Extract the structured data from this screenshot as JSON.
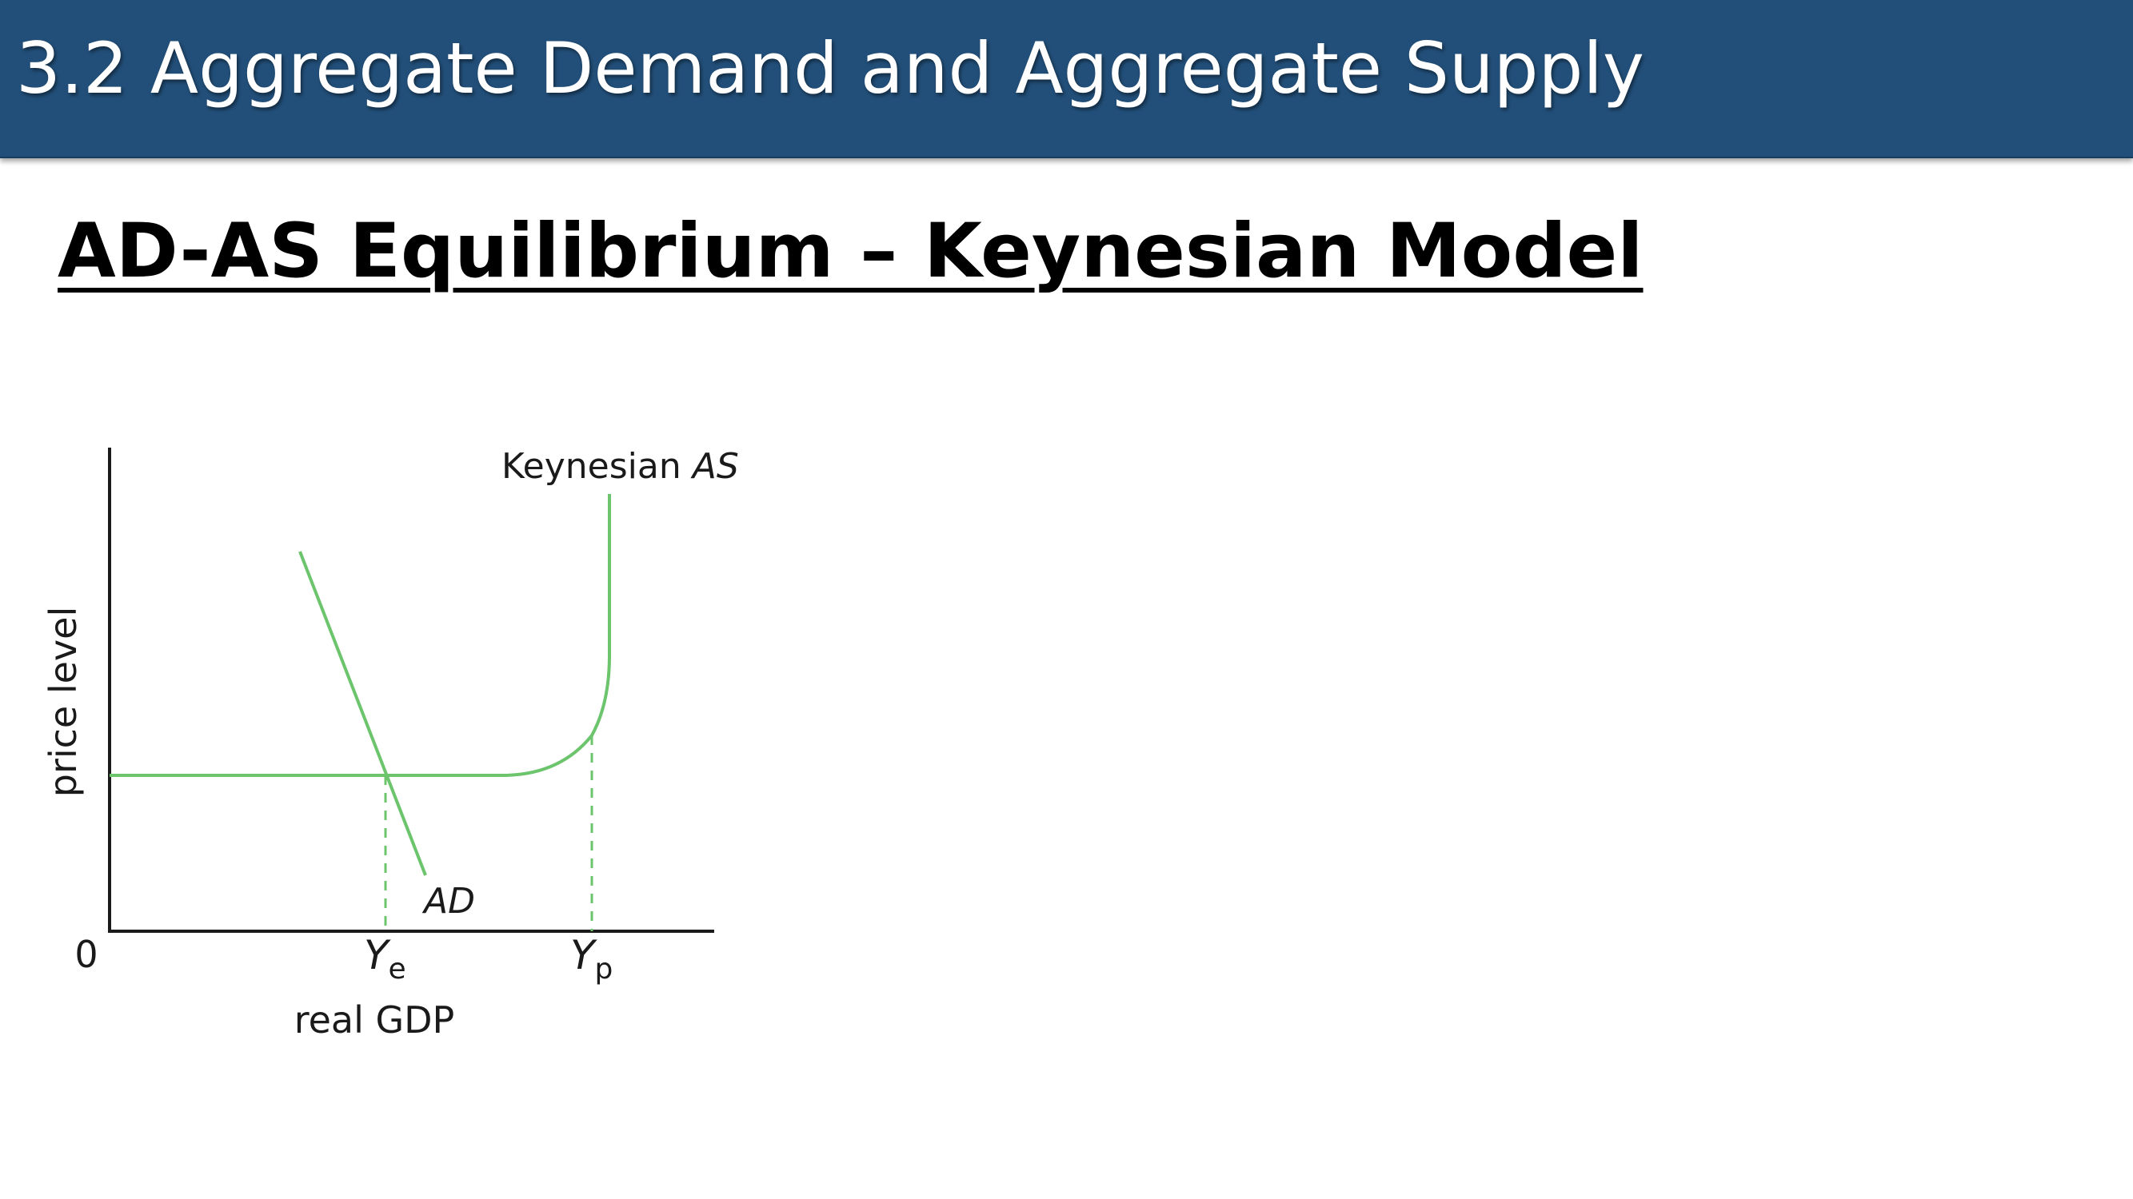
{
  "header": {
    "title": "3.2 Aggregate Demand and Aggregate Supply"
  },
  "slide": {
    "title": "AD-AS Equilibrium – Keynesian Model"
  },
  "diagram": {
    "y_axis_label": "price level",
    "x_axis_label": "real GDP",
    "origin_label": "0",
    "as_curve_label_prefix": "Keynesian ",
    "as_curve_label_italic": "AS",
    "ad_curve_label": "AD",
    "ye_label_main": "Y",
    "ye_label_sub": "e",
    "yp_label_main": "Y",
    "yp_label_sub": "p",
    "curve_color": "#6cc46c",
    "axis_color": "#1a1a1a"
  }
}
